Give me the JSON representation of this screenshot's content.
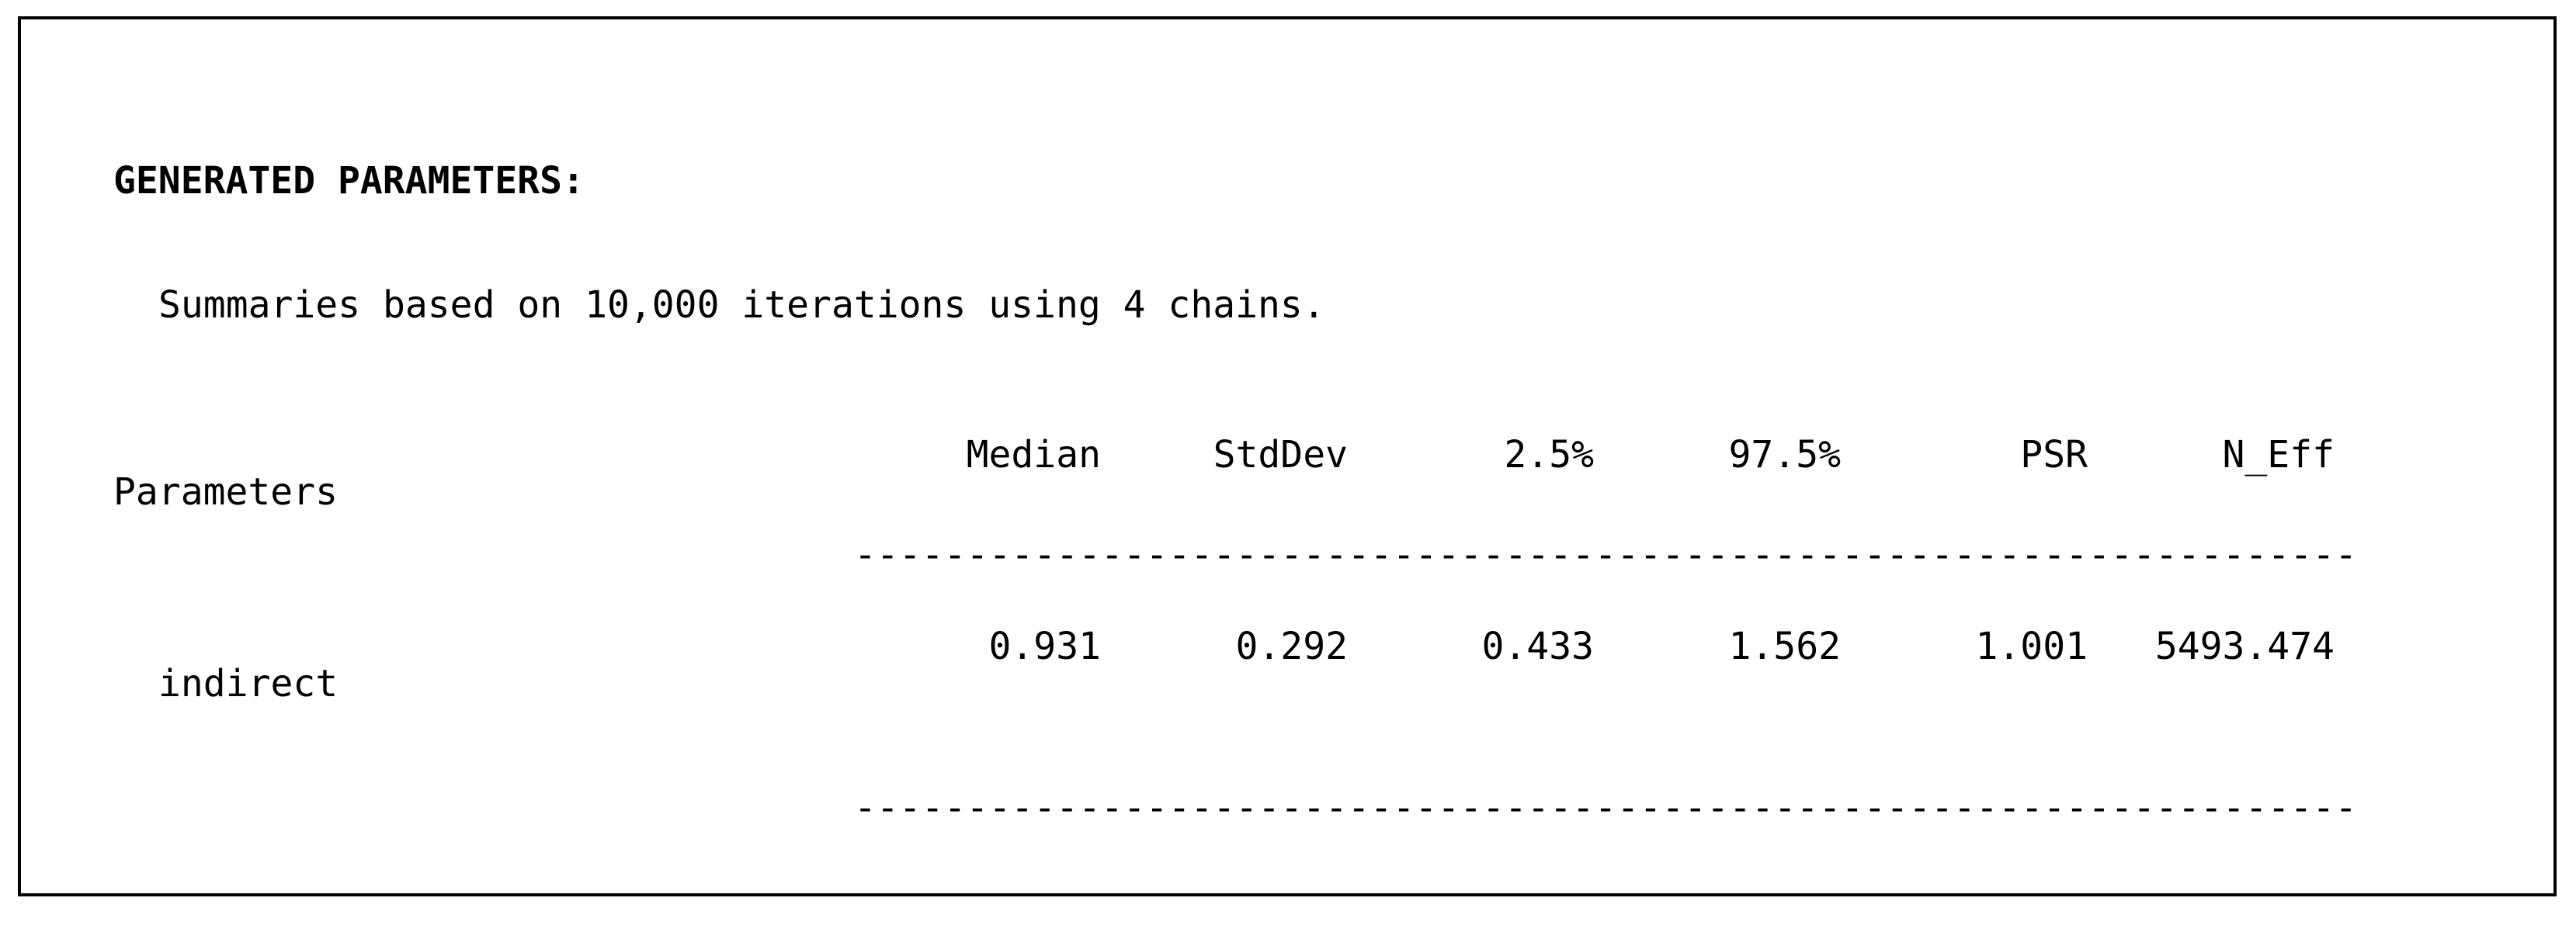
{
  "colors": {
    "text": "#000000",
    "background": "#ffffff",
    "border": "#000000"
  },
  "section": {
    "title": "GENERATED PARAMETERS:",
    "subtitle": "Summaries based on 10,000 iterations using 4 chains."
  },
  "table": {
    "row_label_header": "Parameters",
    "columns": [
      "Median",
      "StdDev",
      "2.5%",
      "97.5%",
      "PSR",
      "N_Eff"
    ],
    "separator": "-------------------------------------------------------------------",
    "rows": [
      {
        "label": "indirect",
        "values": [
          "0.931",
          "0.292",
          "0.433",
          "1.562",
          "1.001",
          "5493.474"
        ]
      }
    ]
  }
}
